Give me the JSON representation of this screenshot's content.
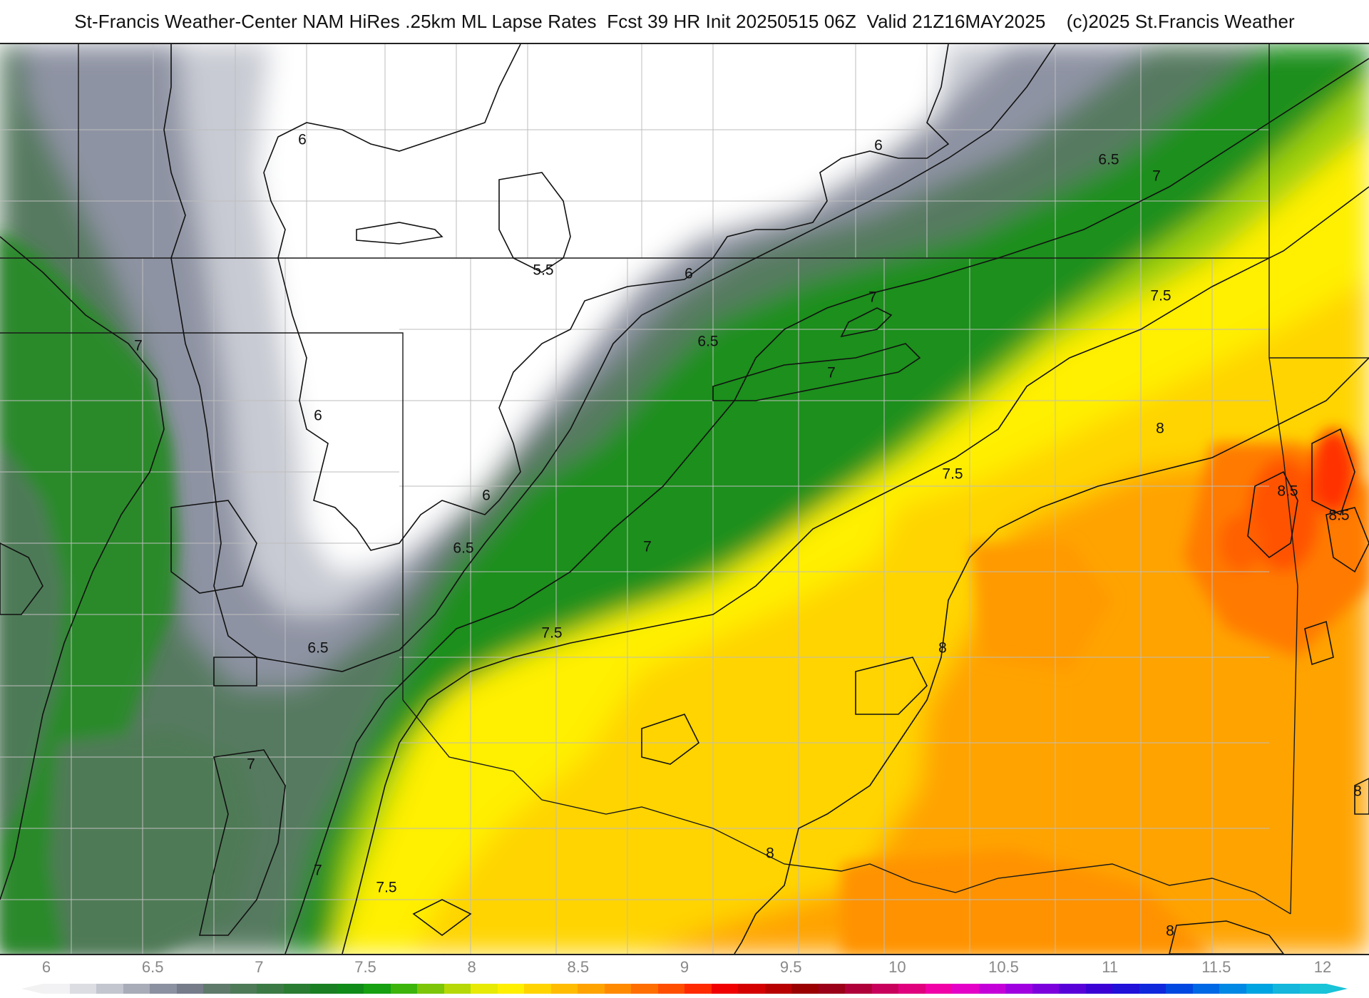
{
  "header": {
    "title": "St-Francis Weather-Center NAM HiRes .25km ML Lapse Rates  Fcst 39 HR Init 20250515 06Z  Valid 21Z16MAY2025    (c)2025 St.Francis Weather"
  },
  "map": {
    "field": "ML Lapse Rates",
    "contour_labels": [
      {
        "text": "6"
      },
      {
        "text": "6"
      },
      {
        "text": "5.5"
      },
      {
        "text": "6"
      },
      {
        "text": "6"
      },
      {
        "text": "6"
      },
      {
        "text": "6.5"
      },
      {
        "text": "6.5"
      },
      {
        "text": "6.5"
      },
      {
        "text": "6.5"
      },
      {
        "text": "7"
      },
      {
        "text": "7"
      },
      {
        "text": "7"
      },
      {
        "text": "7"
      },
      {
        "text": "7"
      },
      {
        "text": "7"
      },
      {
        "text": "7"
      },
      {
        "text": "7.5"
      },
      {
        "text": "7.5"
      },
      {
        "text": "7.5"
      },
      {
        "text": "7.5"
      },
      {
        "text": "8"
      },
      {
        "text": "8"
      },
      {
        "text": "8"
      },
      {
        "text": "8"
      },
      {
        "text": "8"
      },
      {
        "text": "8.5"
      },
      {
        "text": "8.5"
      }
    ]
  },
  "color_scale": {
    "tick_labels": [
      "6",
      "6.5",
      "7",
      "7.5",
      "8",
      "8.5",
      "9",
      "9.5",
      "10",
      "10.5",
      "11",
      "11.5",
      "12"
    ],
    "colors": [
      "#f2f2f4",
      "#dcdde2",
      "#c3c6cf",
      "#a8acb8",
      "#8c91a1",
      "#767c8a",
      "#5f7a6b",
      "#4e7a58",
      "#3c7a45",
      "#2a7c32",
      "#1a7f22",
      "#108a18",
      "#16a012",
      "#3cb40c",
      "#7cc508",
      "#b6d806",
      "#e6ea04",
      "#ffef00",
      "#ffd400",
      "#ffbc00",
      "#ffa300",
      "#ff8a00",
      "#ff6e00",
      "#ff4e00",
      "#ff2a00",
      "#f00000",
      "#d40000",
      "#b80000",
      "#9a0000",
      "#9a0018",
      "#b0003a",
      "#c8005c",
      "#e0007e",
      "#f000a6",
      "#e400c6",
      "#c400d8",
      "#a000e0",
      "#7c00dc",
      "#5800d8",
      "#3a00d4",
      "#2010d8",
      "#1028dc",
      "#0048e0",
      "#0068e4",
      "#0088e4",
      "#00a4e0",
      "#14b6dc",
      "#19c3d8"
    ]
  }
}
